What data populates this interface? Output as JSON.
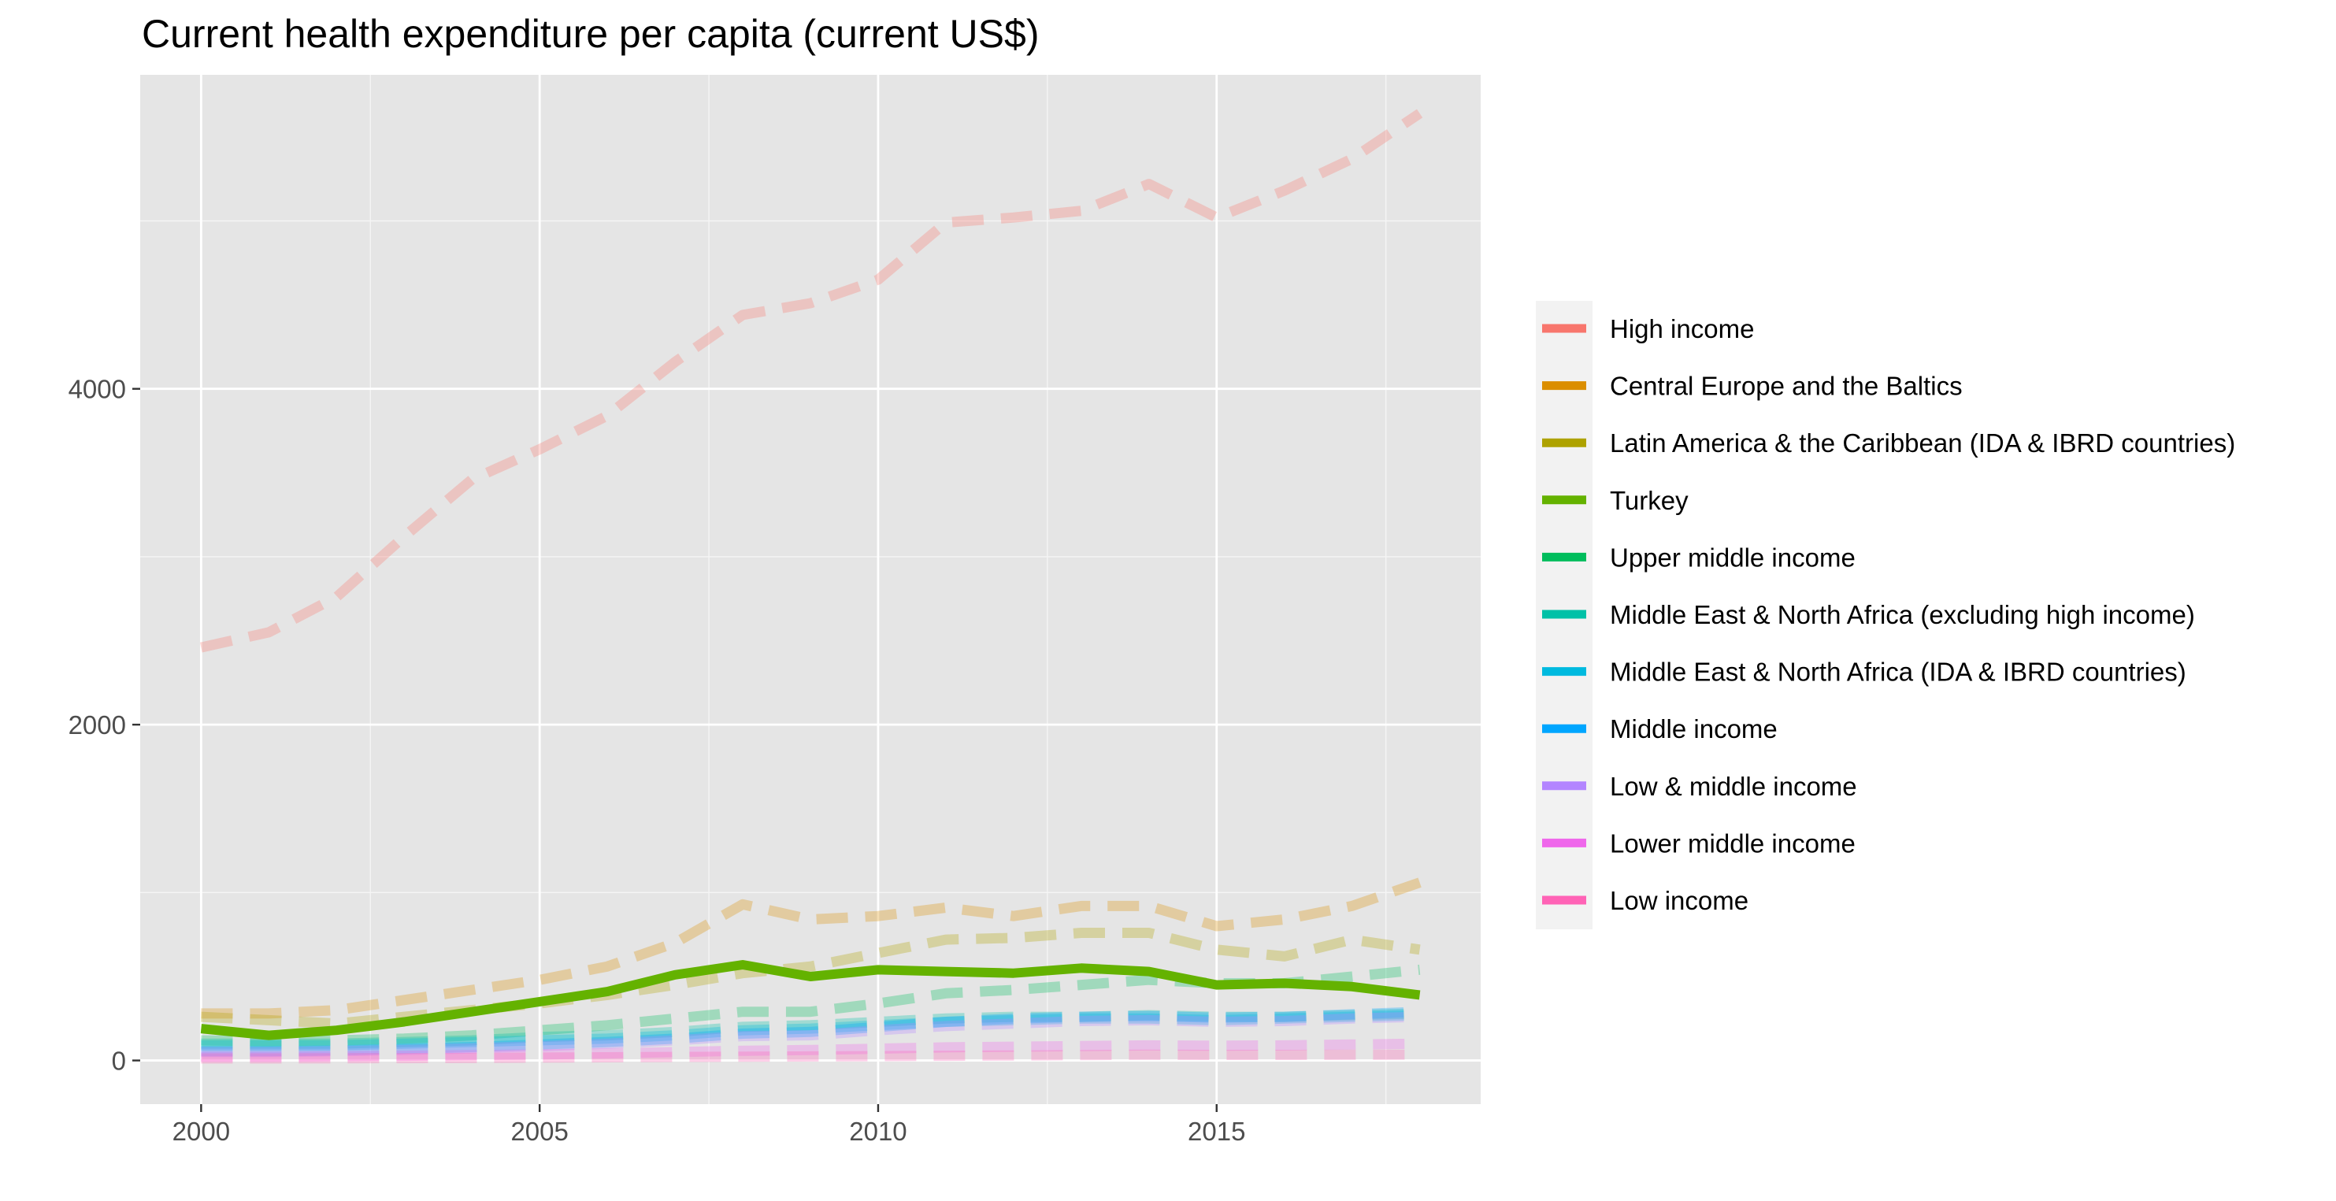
{
  "chart_data": {
    "type": "line",
    "title": "Current health expenditure per capita (current US$)",
    "xlabel": "",
    "ylabel": "",
    "xlim": [
      1999.1,
      2018.9
    ],
    "ylim": [
      -260,
      5870
    ],
    "x_ticks": [
      2000,
      2005,
      2010,
      2015
    ],
    "y_ticks": [
      0,
      2000,
      4000
    ],
    "x_minor_ticks": [
      2002.5,
      2007.5,
      2012.5,
      2017.5
    ],
    "y_minor_ticks": [
      1000,
      3000,
      5000
    ],
    "grid": true,
    "legend_position": "right",
    "panel_color": "#e5e5e5",
    "x": [
      2000,
      2001,
      2002,
      2003,
      2004,
      2005,
      2006,
      2007,
      2008,
      2009,
      2010,
      2011,
      2012,
      2013,
      2014,
      2015,
      2016,
      2017,
      2018
    ],
    "series": [
      {
        "name": "High income",
        "color": "#f8766d",
        "style": "dashed",
        "emphasis": false,
        "values": [
          2460,
          2550,
          2760,
          3120,
          3460,
          3640,
          3840,
          4160,
          4440,
          4510,
          4650,
          4990,
          5020,
          5060,
          5220,
          5020,
          5180,
          5370,
          5640
        ]
      },
      {
        "name": "Central Europe and the Baltics",
        "color": "#db8e00",
        "style": "dashed",
        "emphasis": false,
        "values": [
          280,
          280,
          300,
          360,
          420,
          480,
          560,
          700,
          930,
          840,
          860,
          910,
          860,
          920,
          920,
          800,
          840,
          920,
          1060
        ]
      },
      {
        "name": "Latin America & the Caribbean (IDA & IBRD countries)",
        "color": "#aea200",
        "style": "dashed",
        "emphasis": false,
        "values": [
          260,
          240,
          220,
          260,
          300,
          340,
          390,
          450,
          520,
          560,
          640,
          720,
          730,
          760,
          760,
          660,
          620,
          720,
          660
        ]
      },
      {
        "name": "Turkey",
        "color": "#64b200",
        "style": "solid",
        "emphasis": true,
        "values": [
          190,
          150,
          180,
          230,
          290,
          350,
          410,
          510,
          570,
          500,
          540,
          530,
          520,
          550,
          530,
          450,
          460,
          440,
          390
        ]
      },
      {
        "name": "Upper middle income",
        "color": "#00bd5c",
        "style": "dashed",
        "emphasis": false,
        "values": [
          120,
          115,
          120,
          130,
          150,
          180,
          210,
          250,
          290,
          290,
          340,
          400,
          420,
          450,
          480,
          460,
          460,
          500,
          540
        ]
      },
      {
        "name": "Middle East & North Africa (excluding high income)",
        "color": "#00c1a7",
        "style": "dashed",
        "emphasis": false,
        "values": [
          100,
          100,
          100,
          110,
          120,
          140,
          150,
          170,
          200,
          210,
          230,
          250,
          260,
          260,
          270,
          260,
          260,
          270,
          280
        ]
      },
      {
        "name": "Middle East & North Africa (IDA & IBRD countries)",
        "color": "#00badf",
        "style": "dashed",
        "emphasis": false,
        "values": [
          90,
          90,
          90,
          100,
          110,
          120,
          130,
          150,
          180,
          190,
          210,
          230,
          240,
          250,
          250,
          240,
          250,
          260,
          270
        ]
      },
      {
        "name": "Middle income",
        "color": "#00a6ff",
        "style": "dashed",
        "emphasis": false,
        "values": [
          55,
          55,
          60,
          70,
          80,
          95,
          110,
          130,
          160,
          170,
          200,
          230,
          250,
          260,
          265,
          255,
          260,
          275,
          290
        ]
      },
      {
        "name": "Low & middle income",
        "color": "#b385ff",
        "style": "dashed",
        "emphasis": false,
        "values": [
          50,
          50,
          55,
          62,
          72,
          85,
          100,
          120,
          145,
          150,
          180,
          205,
          220,
          235,
          240,
          230,
          235,
          250,
          260
        ]
      },
      {
        "name": "Lower middle income",
        "color": "#ef67eb",
        "style": "dashed",
        "emphasis": false,
        "values": [
          22,
          22,
          25,
          28,
          32,
          36,
          42,
          50,
          58,
          62,
          70,
          78,
          82,
          86,
          90,
          88,
          90,
          95,
          100
        ]
      },
      {
        "name": "Low income",
        "color": "#ff63b6",
        "style": "dashed",
        "emphasis": false,
        "values": [
          12,
          12,
          13,
          14,
          15,
          17,
          19,
          21,
          23,
          24,
          26,
          28,
          30,
          32,
          34,
          33,
          33,
          34,
          35
        ]
      }
    ]
  }
}
